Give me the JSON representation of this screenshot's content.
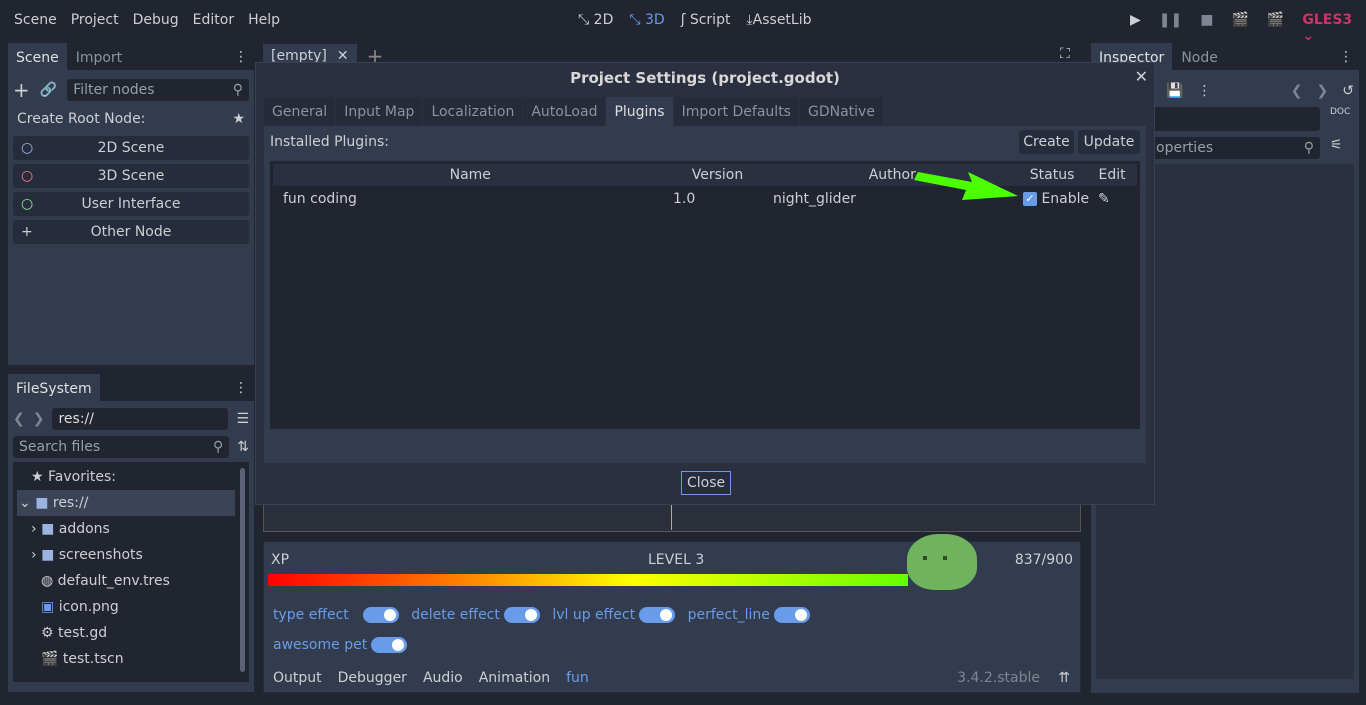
{
  "menu": [
    "Scene",
    "Project",
    "Debug",
    "Editor",
    "Help"
  ],
  "workspaces": [
    {
      "icon": "2d-icon",
      "label": "2D"
    },
    {
      "icon": "3d-icon",
      "label": "3D"
    },
    {
      "icon": "script-icon",
      "label": "Script"
    },
    {
      "icon": "assetlib-icon",
      "label": "AssetLib"
    }
  ],
  "renderer": "GLES3",
  "accent": "#699ce8",
  "scene_dock": {
    "tabs": [
      "Scene",
      "Import"
    ],
    "filter_placeholder": "Filter nodes",
    "create_root": "Create Root Node:",
    "nodes": [
      "2D Scene",
      "3D Scene",
      "User Interface",
      "Other Node"
    ]
  },
  "filesystem": {
    "tab": "FileSystem",
    "path": "res://",
    "search_placeholder": "Search files",
    "favorites": "Favorites:",
    "items": [
      "res://",
      "addons",
      "screenshots",
      "default_env.tres",
      "icon.png",
      "test.gd",
      "test.tscn"
    ]
  },
  "scene_tabs": {
    "current": "[empty]"
  },
  "inspector": {
    "tabs": [
      "Inspector",
      "Node"
    ],
    "filter_placeholder": "operties"
  },
  "dialog": {
    "title": "Project Settings (project.godot)",
    "tabs": [
      "General",
      "Input Map",
      "Localization",
      "AutoLoad",
      "Plugins",
      "Import Defaults",
      "GDNative"
    ],
    "active_tab": "Plugins",
    "installed": "Installed Plugins:",
    "create": "Create",
    "update": "Update",
    "columns": [
      "Name",
      "Version",
      "Author",
      "Status",
      "Edit"
    ],
    "plugins": [
      {
        "name": "fun coding",
        "version": "1.0",
        "author": "night_glider",
        "status": "Enable",
        "enabled": true
      }
    ],
    "close": "Close"
  },
  "fun_panel": {
    "xp_label": "XP",
    "level": "LEVEL 3",
    "xp": "837/900",
    "xp_fraction": 0.93,
    "toggles": [
      {
        "label": "type effect",
        "on": true
      },
      {
        "label": "delete effect",
        "on": true
      },
      {
        "label": "lvl up effect",
        "on": true
      },
      {
        "label": "perfect_line",
        "on": true
      },
      {
        "label": "awesome pet",
        "on": true
      }
    ]
  },
  "bottom_tabs": [
    "Output",
    "Debugger",
    "Audio",
    "Animation",
    "fun"
  ],
  "version": "3.4.2.stable"
}
